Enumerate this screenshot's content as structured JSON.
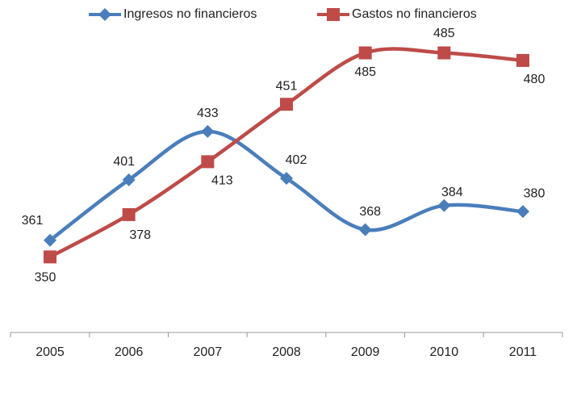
{
  "chart_data": {
    "type": "line",
    "categories": [
      "2005",
      "2006",
      "2007",
      "2008",
      "2009",
      "2010",
      "2011"
    ],
    "series": [
      {
        "name": "Ingresos no financieros",
        "color": "#4a7ebb",
        "marker": "diamond",
        "values": [
          361,
          401,
          433,
          402,
          368,
          384,
          380
        ]
      },
      {
        "name": "Gastos no financieros",
        "color": "#be4b48",
        "marker": "square",
        "values": [
          350,
          378,
          413,
          451,
          485,
          485,
          480
        ]
      }
    ],
    "ylim": [
      300,
      520
    ],
    "grid": false,
    "legend": "top",
    "data_labels": true
  }
}
